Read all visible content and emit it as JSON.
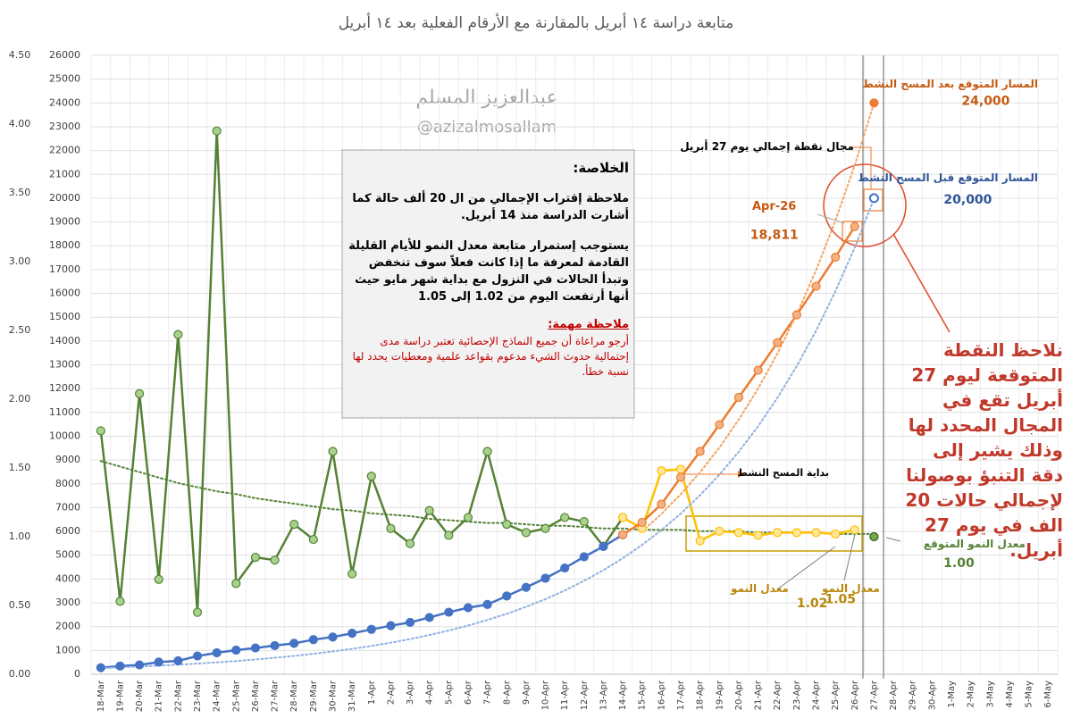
{
  "chart_data": {
    "type": "line",
    "title": "متابعة دراسة ١٤ أبريل بالمقارنة مع الأرقام الفعلية بعد ١٤ أبريل",
    "watermark": [
      "عبدالعزيز المسلم",
      "@azizalmosallam"
    ],
    "categories": [
      "18-Mar",
      "19-Mar",
      "20-Mar",
      "21-Mar",
      "22-Mar",
      "23-Mar",
      "24-Mar",
      "25-Mar",
      "26-Mar",
      "27-Mar",
      "28-Mar",
      "29-Mar",
      "30-Mar",
      "31-Mar",
      "1-Apr",
      "2-Apr",
      "3-Apr",
      "4-Apr",
      "5-Apr",
      "6-Apr",
      "7-Apr",
      "8-Apr",
      "9-Apr",
      "10-Apr",
      "11-Apr",
      "12-Apr",
      "13-Apr",
      "14-Apr",
      "15-Apr",
      "16-Apr",
      "17-Apr",
      "18-Apr",
      "19-Apr",
      "20-Apr",
      "21-Apr",
      "22-Apr",
      "23-Apr",
      "24-Apr",
      "25-Apr",
      "26-Apr",
      "27-Apr",
      "28-Apr",
      "29-Apr",
      "30-Apr",
      "1-May",
      "2-May",
      "3-May",
      "4-May",
      "5-May",
      "6-May"
    ],
    "ylim": [
      0,
      4.5
    ],
    "yticks": [
      {
        "value": 0,
        "label": "0.00"
      },
      {
        "value": 0.5,
        "label": "0.50"
      },
      {
        "value": 1,
        "label": "1.00"
      },
      {
        "value": 1.5,
        "label": "1.50"
      },
      {
        "value": 2,
        "label": "2.00"
      },
      {
        "value": 2.5,
        "label": "2.50"
      },
      {
        "value": 3,
        "label": "3.00"
      },
      {
        "value": 3.5,
        "label": "3.50"
      },
      {
        "value": 4,
        "label": "4.00"
      },
      {
        "value": 4.5,
        "label": "4.50"
      }
    ],
    "y2lim": [
      0,
      26000
    ],
    "y2ticks": [
      0,
      1000,
      2000,
      3000,
      4000,
      5000,
      6000,
      7000,
      8000,
      9000,
      10000,
      11000,
      12000,
      13000,
      14000,
      15000,
      16000,
      17000,
      18000,
      19000,
      20000,
      21000,
      22000,
      23000,
      24000,
      25000,
      26000
    ],
    "grid": true,
    "series": [
      {
        "color": "#548235",
        "marker_color": "#a9d18e",
        "line": "solid",
        "marker": "filled",
        "values": [
          1.77,
          0.53,
          2.04,
          0.69,
          2.47,
          0.45,
          3.95,
          0.66,
          0.85,
          0.83,
          1.09,
          0.98,
          1.62,
          0.73,
          1.44,
          1.06,
          0.95,
          1.19,
          1.01,
          1.14,
          1.62,
          1.09,
          1.03,
          1.06,
          1.14,
          1.11,
          0.93,
          1.14,
          null,
          null,
          null,
          null,
          null,
          null,
          null,
          null,
          null,
          null,
          null,
          null,
          null,
          null,
          null,
          null,
          null,
          null,
          null,
          null,
          null,
          null
        ]
      },
      {
        "color": "#548235",
        "line": "dotted",
        "marker": "none",
        "values": [
          1.55,
          1.51,
          1.47,
          1.43,
          1.39,
          1.36,
          1.33,
          1.31,
          1.28,
          1.26,
          1.24,
          1.22,
          1.2,
          1.19,
          1.17,
          1.16,
          1.15,
          1.13,
          1.12,
          1.11,
          1.1,
          1.1,
          1.09,
          1.08,
          1.08,
          1.07,
          1.06,
          1.06,
          1.05,
          1.05,
          1.05,
          1.04,
          1.04,
          1.04,
          1.03,
          1.03,
          1.03,
          1.03,
          1.02,
          1.02,
          1.02,
          null,
          null,
          null,
          null,
          null,
          null,
          null,
          null,
          null
        ]
      },
      {
        "color": "#ffc000",
        "marker_color": "#ffe699",
        "line": "solid",
        "marker": "filled",
        "values": [
          null,
          null,
          null,
          null,
          null,
          null,
          null,
          null,
          null,
          null,
          null,
          null,
          null,
          null,
          null,
          null,
          null,
          null,
          null,
          null,
          null,
          null,
          null,
          null,
          null,
          null,
          null,
          1.14,
          1.06,
          1.48,
          1.49,
          0.97,
          1.04,
          1.03,
          1.01,
          1.03,
          1.03,
          1.03,
          1.02,
          1.05,
          null,
          null,
          null,
          null,
          null,
          null,
          null,
          null,
          null,
          null
        ],
        "value_labels": [
          null,
          null,
          null,
          null,
          null,
          null,
          null,
          null,
          null,
          null,
          null,
          null,
          null,
          null,
          null,
          null,
          null,
          null,
          null,
          null,
          null,
          null,
          null,
          null,
          null,
          null,
          null,
          null,
          null,
          null,
          null,
          null,
          null,
          null,
          null,
          null,
          null,
          null,
          "1.02",
          "1.05",
          null,
          null,
          null,
          null,
          null,
          null,
          null,
          null,
          null,
          null
        ]
      },
      {
        "color": "#375623",
        "marker_color": "#70ad47",
        "line": "none",
        "marker": "filled",
        "values": [
          null,
          null,
          null,
          null,
          null,
          null,
          null,
          null,
          null,
          null,
          null,
          null,
          null,
          null,
          null,
          null,
          null,
          null,
          null,
          null,
          null,
          null,
          null,
          null,
          null,
          null,
          null,
          null,
          null,
          null,
          null,
          null,
          null,
          null,
          null,
          null,
          null,
          null,
          null,
          null,
          1,
          null,
          null,
          null,
          null,
          null,
          null,
          null,
          null,
          null
        ],
        "value_labels": [
          null,
          null,
          null,
          null,
          null,
          null,
          null,
          null,
          null,
          null,
          null,
          null,
          null,
          null,
          null,
          null,
          null,
          null,
          null,
          null,
          null,
          null,
          null,
          null,
          null,
          null,
          null,
          null,
          null,
          null,
          null,
          null,
          null,
          null,
          null,
          null,
          null,
          null,
          null,
          null,
          "1.00",
          null,
          null,
          null,
          null,
          null,
          null,
          null,
          null,
          null
        ]
      },
      {
        "axis": "y2",
        "color": "#4472c4",
        "marker_color": "#4472c4",
        "line": "solid",
        "marker": "filled",
        "values": [
          274,
          344,
          392,
          511,
          562,
          767,
          900,
          1012,
          1104,
          1203,
          1299,
          1453,
          1563,
          1720,
          1885,
          2039,
          2179,
          2385,
          2605,
          2795,
          2932,
          3287,
          3651,
          4033,
          4462,
          4934,
          5369,
          5862,
          null,
          null,
          null,
          null,
          null,
          null,
          null,
          null,
          null,
          null,
          null,
          null,
          null,
          null,
          null,
          null,
          null,
          null,
          null,
          null,
          null,
          null
        ]
      },
      {
        "axis": "y2",
        "color": "#8fb0e0",
        "line": "dotted",
        "marker": "none",
        "values": [
          260,
          290,
          323,
          360,
          401,
          448,
          499,
          556,
          620,
          691,
          770,
          858,
          957,
          1066,
          1189,
          1325,
          1477,
          1646,
          1835,
          2045,
          2280,
          2541,
          2833,
          3157,
          3519,
          3923,
          4373,
          4874,
          5433,
          6055,
          6750,
          7523,
          8386,
          9347,
          10419,
          11613,
          12945,
          14429,
          16083,
          17927,
          19982,
          null,
          null,
          null,
          null,
          null,
          null,
          null,
          null,
          null
        ]
      },
      {
        "axis": "y2",
        "color": "#ed7d31",
        "marker_color": "#f4b183",
        "line": "solid",
        "marker": "filled",
        "values": [
          null,
          null,
          null,
          null,
          null,
          null,
          null,
          null,
          null,
          null,
          null,
          null,
          null,
          null,
          null,
          null,
          null,
          null,
          null,
          null,
          null,
          null,
          null,
          null,
          null,
          null,
          null,
          5862,
          6380,
          7142,
          8274,
          9362,
          10484,
          11631,
          12772,
          13930,
          15102,
          16299,
          17522,
          18811,
          null,
          null,
          null,
          null,
          null,
          null,
          null,
          null,
          null,
          null
        ],
        "value_labels": [
          null,
          null,
          null,
          null,
          null,
          null,
          null,
          null,
          null,
          null,
          null,
          null,
          null,
          null,
          null,
          null,
          null,
          null,
          null,
          null,
          null,
          null,
          null,
          null,
          null,
          null,
          null,
          null,
          null,
          null,
          null,
          null,
          null,
          null,
          null,
          null,
          null,
          null,
          null,
          "18,811",
          null,
          null,
          null,
          null,
          null,
          null,
          null,
          null,
          null,
          null
        ]
      },
      {
        "axis": "y2",
        "color": "#f4a460",
        "line": "dotted",
        "marker": "none",
        "values": [
          null,
          null,
          null,
          null,
          null,
          null,
          null,
          null,
          null,
          null,
          null,
          null,
          null,
          null,
          null,
          null,
          null,
          null,
          null,
          null,
          null,
          null,
          null,
          null,
          null,
          null,
          null,
          null,
          6000,
          6735,
          7560,
          8486,
          9525,
          10692,
          12002,
          13472,
          15122,
          16974,
          19053,
          21388,
          24000,
          null,
          null,
          null,
          null,
          null,
          null,
          null,
          null,
          null
        ]
      },
      {
        "axis": "y2",
        "color": "#ed7d31",
        "marker_color": "#ed7d31",
        "line": "none",
        "marker": "filled",
        "values": [
          null,
          null,
          null,
          null,
          null,
          null,
          null,
          null,
          null,
          null,
          null,
          null,
          null,
          null,
          null,
          null,
          null,
          null,
          null,
          null,
          null,
          null,
          null,
          null,
          null,
          null,
          null,
          null,
          null,
          null,
          null,
          null,
          null,
          null,
          null,
          null,
          null,
          null,
          null,
          null,
          24000,
          null,
          null,
          null,
          null,
          null,
          null,
          null,
          null,
          null
        ],
        "value_labels": [
          null,
          null,
          null,
          null,
          null,
          null,
          null,
          null,
          null,
          null,
          null,
          null,
          null,
          null,
          null,
          null,
          null,
          null,
          null,
          null,
          null,
          null,
          null,
          null,
          null,
          null,
          null,
          null,
          null,
          null,
          null,
          null,
          null,
          null,
          null,
          null,
          null,
          null,
          null,
          null,
          "24,000",
          null,
          null,
          null,
          null,
          null,
          null,
          null,
          null,
          null
        ]
      },
      {
        "axis": "y2",
        "color": "#4472c4",
        "marker_color": "#dae3f3",
        "line": "none",
        "marker": "open",
        "values": [
          null,
          null,
          null,
          null,
          null,
          null,
          null,
          null,
          null,
          null,
          null,
          null,
          null,
          null,
          null,
          null,
          null,
          null,
          null,
          null,
          null,
          null,
          null,
          null,
          null,
          null,
          null,
          null,
          null,
          null,
          null,
          null,
          null,
          null,
          null,
          null,
          null,
          null,
          null,
          null,
          20000,
          null,
          null,
          null,
          null,
          null,
          null,
          null,
          null,
          null
        ],
        "value_labels": [
          null,
          null,
          null,
          null,
          null,
          null,
          null,
          null,
          null,
          null,
          null,
          null,
          null,
          null,
          null,
          null,
          null,
          null,
          null,
          null,
          null,
          null,
          null,
          null,
          null,
          null,
          null,
          null,
          null,
          null,
          null,
          null,
          null,
          null,
          null,
          null,
          null,
          null,
          null,
          null,
          "20,000",
          null,
          null,
          null,
          null,
          null,
          null,
          null,
          null,
          null
        ]
      }
    ],
    "annotations": [
      "المسار المتوقع بعد المسح النشط",
      "مجال نقطة إجمالي يوم 27 أبريل",
      "المسار المتوقع قبل المسح النشط",
      "26-Apr",
      "بداية المسح النشط",
      "معدل النمو المتوقع",
      "معدل النمو",
      "معدل النمو",
      "نلاحظ النقطة المتوقعة ليوم 27 أبريل تقع في المجال المحدد لها وذلك يشير إلى دقة التنبؤ بوصولنا لإجمالي حالات 20 الف في يوم 27 أبريل."
    ],
    "summary": {
      "heading": "الخلاصة:",
      "paragraphs": [
        "ملاحظة إقتراب الإجمالي من ال 20 ألف حالة كما أشارت الدراسة منذ 14 أبريل.",
        "يستوجب إستمرار متابعة معدل النمو للأيام القليلة القادمة لمعرفة ما إذا كانت فعلاً سوف تنخفض وتبدأ الحالات في النزول مع بداية شهر مايو حيث أنها أرتفعت اليوم من 1.02 إلى 1.05"
      ],
      "note_heading": "ملاحظة مهمة:",
      "note": "أرجو مراعاة أن جميع النماذج الإحصائية تعتبر دراسة مدى إحتمالية حدوث الشيء مدعوم بقواعد علمية ومعطيات يحدد لها نسبة خطأ."
    }
  }
}
